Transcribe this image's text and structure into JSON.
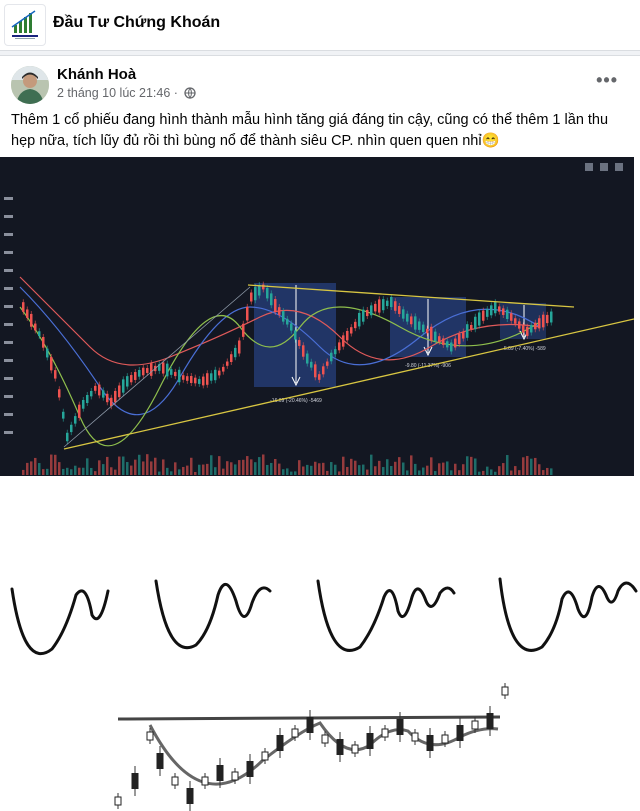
{
  "group": {
    "name": "Đầu Tư Chứng Khoán",
    "logo_icon": "rising-bar-chart-logo-icon"
  },
  "post": {
    "author": "Khánh Hoà",
    "timestamp": "2 tháng 10 lúc 21:46",
    "separator": "·",
    "privacy_icon": "globe-icon",
    "more_label": "•••",
    "text": "Thêm 1 cổ phiếu đang hình thành mẫu hình tăng giá đáng tin cậy, cũng có thể thêm 1 lần thu hẹp nữa, tích lũy đủ rồi thì bùng nổ để thành siêu CP. nhìn quen quen nhỉ😁"
  },
  "chart_image": {
    "background": "#131722",
    "labels": {
      "box1": "-16.69 (-20.46%) -5469",
      "box2": "-9.80 (-11.37%) -906",
      "box3": "-5.89 (-7.40%) -589"
    }
  },
  "colors": {
    "up": "#26a69a",
    "down": "#ef5350",
    "trendline": "#d8c642",
    "box": "#2d4f9e"
  }
}
